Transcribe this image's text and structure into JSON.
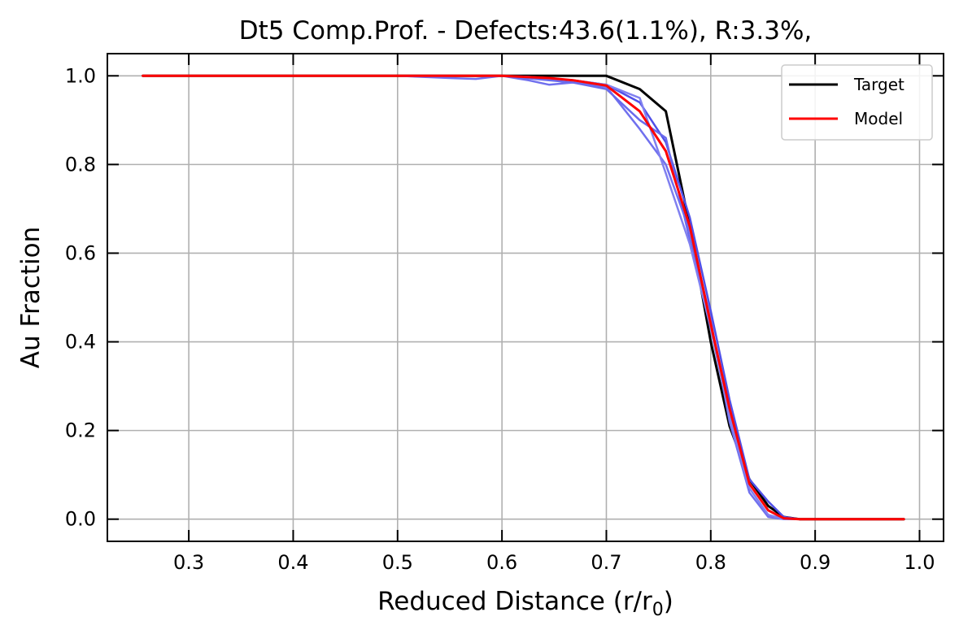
{
  "chart_data": {
    "type": "line",
    "title": "Dt5 Comp.Prof. - Defects:43.6(1.1%), R:3.3%,",
    "xlabel": "Reduced Distance (r/r",
    "xlabel_sub": "0",
    "xlabel_close": ")",
    "ylabel": "Au Fraction",
    "xlim": [
      0.222,
      1.023
    ],
    "ylim": [
      -0.05,
      1.05
    ],
    "xticks": [
      0.3,
      0.4,
      0.5,
      0.6,
      0.7,
      0.8,
      0.9,
      1.0
    ],
    "xtick_labels": [
      "0.3",
      "0.4",
      "0.5",
      "0.6",
      "0.7",
      "0.8",
      "0.9",
      "1.0"
    ],
    "yticks": [
      0.0,
      0.2,
      0.4,
      0.6,
      0.8,
      1.0
    ],
    "ytick_labels": [
      "0.0",
      "0.2",
      "0.4",
      "0.6",
      "0.8",
      "1.0"
    ],
    "grid": true,
    "legend_position": "top-right",
    "legend": [
      {
        "label": "Target",
        "color": "#000000"
      },
      {
        "label": "Model",
        "color": "#ff0000"
      }
    ],
    "series": [
      {
        "name": "Target",
        "color": "#000000",
        "width": 3,
        "x": [
          0.256,
          0.5,
          0.6,
          0.657,
          0.68,
          0.7,
          0.732,
          0.757,
          0.78,
          0.8,
          0.818,
          0.837,
          0.855,
          0.87,
          0.885,
          0.985
        ],
        "y": [
          1.0,
          1.0,
          1.0,
          1.0,
          1.0,
          1.0,
          0.97,
          0.92,
          0.66,
          0.4,
          0.21,
          0.09,
          0.03,
          0.005,
          0.0,
          0.0
        ]
      },
      {
        "color": "#7070ee",
        "width": 2.5,
        "x": [
          0.256,
          0.5,
          0.55,
          0.575,
          0.6,
          0.625,
          0.645,
          0.668,
          0.7,
          0.732,
          0.757,
          0.78,
          0.8,
          0.818,
          0.837,
          0.855,
          0.87,
          0.885,
          0.985
        ],
        "y": [
          1.0,
          1.0,
          0.995,
          0.993,
          1.0,
          0.99,
          0.98,
          0.985,
          0.975,
          0.88,
          0.8,
          0.65,
          0.45,
          0.22,
          0.06,
          0.005,
          0.0,
          0.0,
          0.0
        ]
      },
      {
        "color": "#5050e8",
        "width": 2.5,
        "x": [
          0.256,
          0.5,
          0.6,
          0.625,
          0.668,
          0.7,
          0.732,
          0.757,
          0.78,
          0.8,
          0.818,
          0.837,
          0.855,
          0.87,
          0.885,
          0.985
        ],
        "y": [
          1.0,
          1.0,
          1.0,
          0.998,
          0.99,
          0.98,
          0.94,
          0.85,
          0.68,
          0.47,
          0.27,
          0.09,
          0.04,
          0.005,
          0.0,
          0.0
        ]
      },
      {
        "color": "#6a6aec",
        "width": 2.5,
        "x": [
          0.256,
          0.5,
          0.6,
          0.645,
          0.668,
          0.7,
          0.732,
          0.757,
          0.78,
          0.8,
          0.818,
          0.837,
          0.855,
          0.87,
          0.885,
          0.985
        ],
        "y": [
          1.0,
          1.0,
          1.0,
          0.99,
          0.985,
          0.97,
          0.9,
          0.86,
          0.63,
          0.44,
          0.24,
          0.08,
          0.02,
          0.0,
          0.0,
          0.0
        ]
      },
      {
        "color": "#8080f0",
        "width": 2.5,
        "x": [
          0.256,
          0.5,
          0.6,
          0.645,
          0.668,
          0.7,
          0.732,
          0.757,
          0.78,
          0.8,
          0.818,
          0.837,
          0.855,
          0.87,
          0.885,
          0.985
        ],
        "y": [
          1.0,
          1.0,
          1.0,
          0.995,
          0.99,
          0.98,
          0.95,
          0.78,
          0.62,
          0.43,
          0.23,
          0.07,
          0.01,
          0.0,
          0.0,
          0.0
        ]
      },
      {
        "name": "Model",
        "color": "#ff0000",
        "width": 3,
        "x": [
          0.256,
          0.5,
          0.6,
          0.645,
          0.668,
          0.7,
          0.732,
          0.757,
          0.78,
          0.8,
          0.818,
          0.837,
          0.855,
          0.87,
          0.885,
          0.985
        ],
        "y": [
          1.0,
          1.0,
          1.0,
          0.995,
          0.99,
          0.978,
          0.92,
          0.83,
          0.66,
          0.44,
          0.25,
          0.08,
          0.02,
          0.002,
          0.0,
          0.0
        ]
      }
    ]
  }
}
